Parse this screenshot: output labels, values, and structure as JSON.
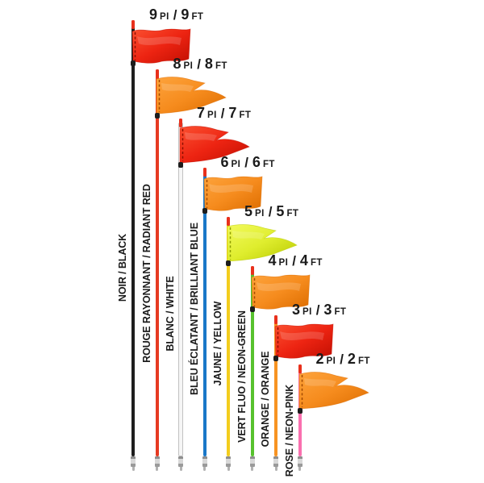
{
  "page": {
    "background": "#ffffff",
    "separator": "/"
  },
  "shared": {
    "pole_tip_color": "#e8301c",
    "flag_sleeve_color": "#1d1d1d",
    "ferrule_color": "#d8d8d8",
    "ferrule_dark": "#8e8e8e",
    "text_color": "#1b1b1b"
  },
  "flags": [
    {
      "name": "9ft",
      "height": {
        "num_fr": "9",
        "unit_fr": "PI",
        "num_en": "9",
        "unit_en": "FT"
      },
      "pole_label": "NOIR / BLACK",
      "pole_color": "#1e1e1e",
      "flag_shape": "rectangle",
      "flag_colors": {
        "light": "#fb5030",
        "base": "#ed2412",
        "dark": "#c20f02",
        "stitch": "#8e0f00"
      }
    },
    {
      "name": "8ft",
      "height": {
        "num_fr": "8",
        "unit_fr": "PI",
        "num_en": "8",
        "unit_en": "FT"
      },
      "pole_label": "ROUGE RAYONNANT / RADIANT RED",
      "pole_color": "#e63a22",
      "flag_shape": "swallowtail",
      "flag_colors": {
        "light": "#fda33c",
        "base": "#f68c1e",
        "dark": "#dd6d00",
        "stitch": "#a34a00"
      }
    },
    {
      "name": "7ft",
      "height": {
        "num_fr": "7",
        "unit_fr": "PI",
        "num_en": "7",
        "unit_en": "FT"
      },
      "pole_label": "BLANC / WHITE",
      "pole_color": "#f5f5f5",
      "pole_border": "#c2c2c2",
      "flag_shape": "swallowtail",
      "flag_colors": {
        "light": "#fb5030",
        "base": "#ed2412",
        "dark": "#c20f02",
        "stitch": "#8e0f00"
      }
    },
    {
      "name": "6ft",
      "height": {
        "num_fr": "6",
        "unit_fr": "PI",
        "num_en": "6",
        "unit_en": "FT"
      },
      "pole_label": "BLEU ÉCLATANT / BRILLIANT BLUE",
      "pole_color": "#1a78c8",
      "flag_shape": "rectangle",
      "flag_colors": {
        "light": "#fda33c",
        "base": "#f68c1e",
        "dark": "#dd6d00",
        "stitch": "#a34a00"
      }
    },
    {
      "name": "5ft",
      "height": {
        "num_fr": "5",
        "unit_fr": "PI",
        "num_en": "5",
        "unit_en": "FT"
      },
      "pole_label": "JAUNE / YELLOW",
      "pole_color": "#f3cd1d",
      "flag_shape": "swallowtail",
      "flag_colors": {
        "light": "#f2fa5c",
        "base": "#dfed2e",
        "dark": "#b8c900",
        "stitch": "#8f9e00"
      }
    },
    {
      "name": "4ft",
      "height": {
        "num_fr": "4",
        "unit_fr": "PI",
        "num_en": "4",
        "unit_en": "FT"
      },
      "pole_label": "VERT FLUO / NEON-GREEN",
      "pole_color": "#57c22e",
      "flag_shape": "rectangle",
      "flag_colors": {
        "light": "#fda33c",
        "base": "#f68c1e",
        "dark": "#dd6d00",
        "stitch": "#a34a00"
      }
    },
    {
      "name": "3ft",
      "height": {
        "num_fr": "3",
        "unit_fr": "PI",
        "num_en": "3",
        "unit_en": "FT"
      },
      "pole_label": "ORANGE / ORANGE",
      "pole_color": "#f79322",
      "flag_shape": "rectangle",
      "flag_colors": {
        "light": "#fb5030",
        "base": "#ed2412",
        "dark": "#c20f02",
        "stitch": "#8e0f00"
      }
    },
    {
      "name": "2ft",
      "height": {
        "num_fr": "2",
        "unit_fr": "PI",
        "num_en": "2",
        "unit_en": "FT"
      },
      "pole_label": "ROSE / NEON-PINK",
      "pole_color": "#fa70af",
      "flag_shape": "swallowtail",
      "flag_colors": {
        "light": "#fda33c",
        "base": "#f68c1e",
        "dark": "#dd6d00",
        "stitch": "#a34a00"
      }
    }
  ]
}
